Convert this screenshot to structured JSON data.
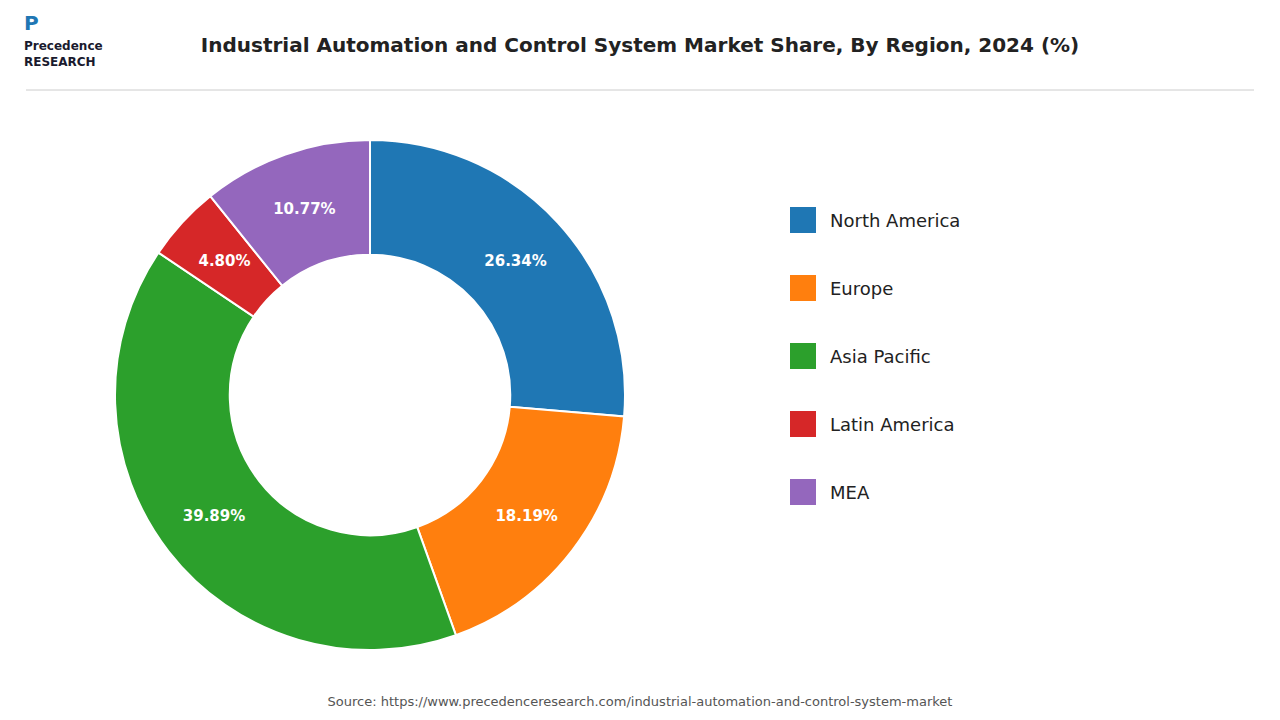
{
  "chart_data": {
    "type": "pie",
    "title": "Industrial Automation and Control System Market Share, By Region, 2024 (%)",
    "categories": [
      "North America",
      "Europe",
      "Asia Pacific",
      "Latin America",
      "MEA"
    ],
    "values": [
      26.34,
      18.19,
      39.89,
      4.8,
      10.77
    ],
    "value_labels": [
      "26.34%",
      "18.19%",
      "39.89%",
      "4.80%",
      "10.77%"
    ],
    "data_labels": true,
    "legend": "right",
    "annotations": [
      "Precedence",
      "RESEARCH",
      "P",
      "Source: https://www.precedenceresearch.com/industrial-automation-and-control-system-market"
    ]
  }
}
